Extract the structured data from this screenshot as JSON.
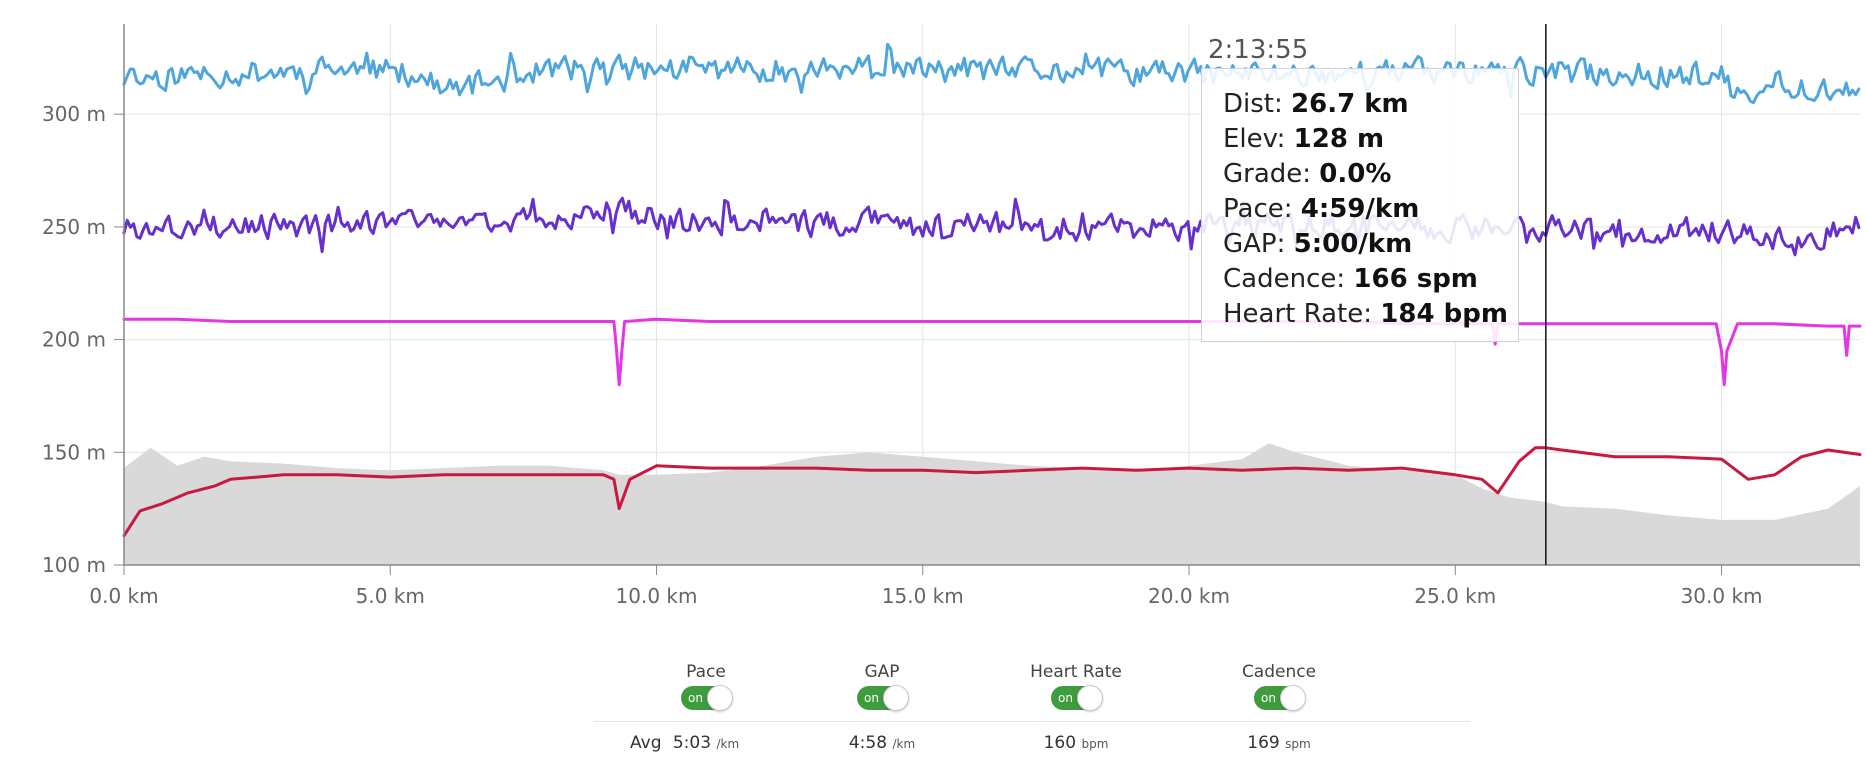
{
  "chart_data": {
    "type": "line",
    "x_unit": "km",
    "x_range": [
      0,
      32.6
    ],
    "y_range": [
      100,
      340
    ],
    "y_ticks": [
      "100 m",
      "150 m",
      "200 m",
      "250 m",
      "300 m"
    ],
    "x_ticks": [
      "0.0 km",
      "5.0 km",
      "10.0 km",
      "15.0 km",
      "20.0 km",
      "25.0 km",
      "30.0 km"
    ],
    "grid": true,
    "cursor": {
      "x_km": 26.7,
      "time_label": "2:13:55"
    },
    "series": [
      {
        "name": "Elevation",
        "kind": "area",
        "color": "#d9d9d9",
        "x": [
          0,
          0.5,
          1,
          1.5,
          2,
          3,
          4,
          5,
          6,
          7,
          8,
          9,
          9.3,
          10,
          11,
          12,
          13,
          14,
          15,
          16,
          17,
          18,
          19,
          20,
          21,
          21.5,
          22,
          23,
          24,
          25,
          25.5,
          26,
          26.7,
          27,
          28,
          29,
          30,
          31,
          32,
          32.6
        ],
        "y": [
          143,
          152,
          144,
          148,
          146,
          145,
          143,
          142,
          143,
          144,
          144,
          142,
          140,
          140,
          141,
          144,
          148,
          150,
          148,
          146,
          144,
          143,
          142,
          144,
          147,
          154,
          150,
          144,
          142,
          140,
          134,
          130,
          128,
          126,
          125,
          122,
          120,
          120,
          125,
          135
        ]
      },
      {
        "name": "Heart Rate",
        "kind": "line",
        "color": "#c8193f",
        "x": [
          0,
          0.3,
          0.7,
          1.2,
          1.7,
          2,
          2.5,
          3,
          4,
          5,
          6,
          7,
          8,
          9,
          9.2,
          9.3,
          9.5,
          10,
          11,
          12,
          13,
          14,
          15,
          16,
          17,
          18,
          19,
          20,
          21,
          22,
          23,
          24,
          25,
          25.5,
          25.8,
          26.2,
          26.5,
          26.7,
          27,
          28,
          29,
          30,
          30.5,
          31,
          31.5,
          32,
          32.6
        ],
        "y": [
          113,
          124,
          127,
          132,
          135,
          138,
          139,
          140,
          140,
          139,
          140,
          140,
          140,
          140,
          138,
          125,
          138,
          144,
          143,
          143,
          143,
          142,
          142,
          141,
          142,
          143,
          142,
          143,
          142,
          143,
          142,
          143,
          140,
          138,
          132,
          146,
          152,
          152,
          151,
          148,
          148,
          147,
          138,
          140,
          148,
          151,
          149
        ]
      },
      {
        "name": "Cadence",
        "kind": "line",
        "color": "#e436e4",
        "x": [
          0,
          1,
          2,
          3,
          4,
          5,
          6,
          7,
          8,
          9,
          9.2,
          9.25,
          9.3,
          9.35,
          9.4,
          10,
          11,
          12,
          13,
          14,
          15,
          16,
          17,
          18,
          19,
          20,
          21,
          22,
          23,
          24,
          25,
          25.7,
          25.75,
          25.8,
          26,
          27,
          28,
          29,
          29.9,
          30,
          30.05,
          30.1,
          30.3,
          31,
          32,
          32.3,
          32.35,
          32.4,
          32.6
        ],
        "y": [
          209,
          209,
          208,
          208,
          208,
          208,
          208,
          208,
          208,
          208,
          208,
          195,
          180,
          195,
          208,
          209,
          208,
          208,
          208,
          208,
          208,
          208,
          208,
          208,
          208,
          208,
          208,
          208,
          208,
          207,
          207,
          207,
          198,
          207,
          207,
          207,
          207,
          207,
          207,
          195,
          180,
          195,
          207,
          207,
          206,
          206,
          193,
          206,
          206
        ]
      },
      {
        "name": "GAP",
        "kind": "line",
        "color": "#6630cc",
        "style": "noisy",
        "seed": 3,
        "amplitude": 8,
        "x": [
          0,
          2,
          4,
          6,
          8,
          9.3,
          10,
          12,
          14,
          16,
          18,
          20,
          22,
          24,
          26,
          28,
          30,
          31.5,
          32.3,
          32.6
        ],
        "y": [
          250,
          250,
          251,
          252,
          252,
          258,
          253,
          251,
          252,
          251,
          250,
          250,
          251,
          250,
          249,
          249,
          248,
          242,
          252,
          250
        ]
      },
      {
        "name": "Pace",
        "kind": "line",
        "color": "#4fa6dc",
        "style": "noisy",
        "seed": 11,
        "amplitude": 8,
        "x": [
          0,
          1.5,
          2,
          4,
          5.5,
          6,
          8,
          10,
          12,
          14,
          16,
          18,
          20,
          22,
          24,
          26,
          28,
          30,
          30.4,
          31,
          32.6
        ],
        "y": [
          316,
          318,
          318,
          320,
          318,
          310,
          320,
          320,
          320,
          320,
          319,
          319,
          318,
          318,
          319,
          319,
          318,
          317,
          304,
          314,
          310
        ]
      }
    ]
  },
  "tooltip": {
    "rows": [
      {
        "label": "Dist: ",
        "value": "26.7 km"
      },
      {
        "label": "Elev: ",
        "value": "128 m"
      },
      {
        "label": "Grade: ",
        "value": "0.0%"
      },
      {
        "label": "Pace: ",
        "value": "4:59/km"
      },
      {
        "label": "GAP: ",
        "value": "5:00/km"
      },
      {
        "label": "Cadence: ",
        "value": "166 spm"
      },
      {
        "label": "Heart Rate: ",
        "value": "184 bpm"
      }
    ]
  },
  "controls": {
    "toggle_text": "on",
    "items": [
      {
        "label": "Pace",
        "avg": "5:03",
        "unit": "/km"
      },
      {
        "label": "GAP",
        "avg": "4:58",
        "unit": "/km"
      },
      {
        "label": "Heart Rate",
        "avg": "160",
        "unit": "bpm"
      },
      {
        "label": "Cadence",
        "avg": "169",
        "unit": "spm"
      }
    ],
    "avg_label": "Avg"
  }
}
